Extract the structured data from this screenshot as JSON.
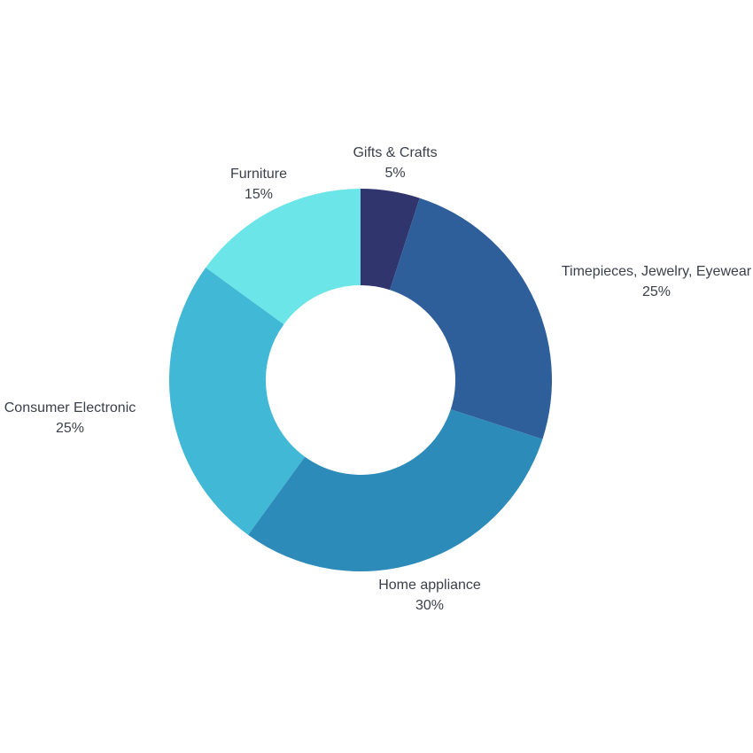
{
  "chart_data": {
    "type": "pie",
    "donut": true,
    "title": "",
    "slices": [
      {
        "label": "Gifts & Crafts",
        "value": 5,
        "value_label": "5%",
        "color": "#31356e"
      },
      {
        "label": "Timepieces, Jewelry, Eyewear",
        "value": 25,
        "value_label": "25%",
        "color": "#2e5f9a"
      },
      {
        "label": "Home appliance",
        "value": 30,
        "value_label": "30%",
        "color": "#2d8bba"
      },
      {
        "label": "Consumer Electronic",
        "value": 25,
        "value_label": "25%",
        "color": "#41b8d5"
      },
      {
        "label": "Furniture",
        "value": 15,
        "value_label": "15%",
        "color": "#6ce5e8"
      }
    ]
  }
}
